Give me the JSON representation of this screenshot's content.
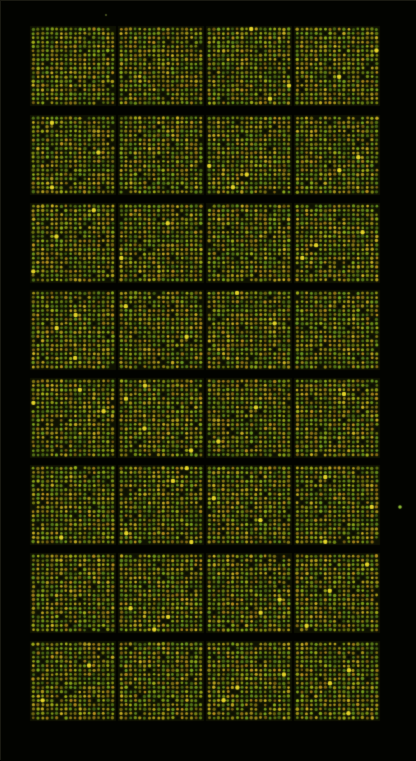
{
  "image": {
    "subject": "microarray-slide",
    "background_color": "#020300",
    "block_grid": {
      "columns": 4,
      "rows": 8
    },
    "spots_per_block": {
      "columns": 18,
      "rows": 18
    },
    "spot_palette": [
      "#7fa81e",
      "#94b21c",
      "#a8b41a",
      "#b9a81c",
      "#c29a1f",
      "#6f9a20",
      "#d2b825"
    ],
    "bright_outlier_color": "#e6d62a",
    "stray_spot_color": "#9fd13a"
  }
}
